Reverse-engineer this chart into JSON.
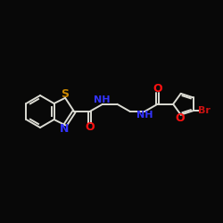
{
  "background_color": "#080808",
  "bond_color": "#dcdcd4",
  "nitrogen_color": "#3333ff",
  "oxygen_color": "#ff1111",
  "sulfur_color": "#cc8800",
  "bromine_label_color": "#cc1111",
  "font_size": 8,
  "figsize": [
    2.5,
    2.5
  ],
  "dpi": 100,
  "xlim": [
    0,
    10
  ],
  "ylim": [
    0,
    10
  ]
}
